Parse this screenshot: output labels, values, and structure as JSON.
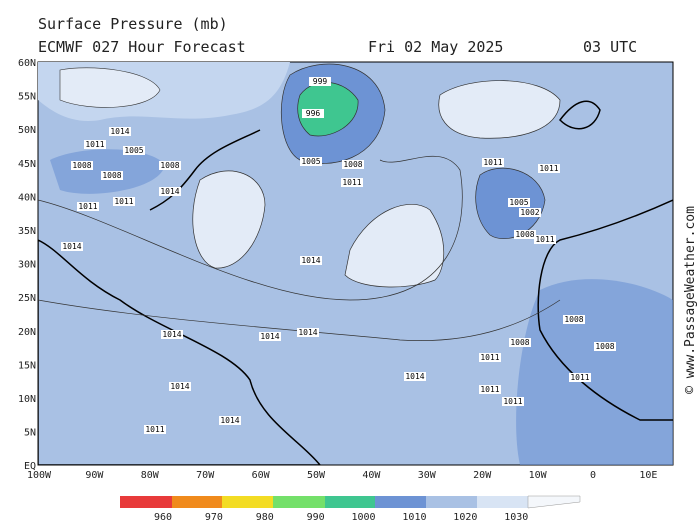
{
  "header": {
    "title": "Surface Pressure (mb)",
    "model": "ECMWF 027 Hour Forecast",
    "date": "Fri 02 May 2025",
    "time": "03 UTC"
  },
  "lat_labels": [
    "60N",
    "55N",
    "50N",
    "45N",
    "40N",
    "35N",
    "30N",
    "25N",
    "20N",
    "15N",
    "10N",
    "5N",
    "EQ"
  ],
  "lon_labels": [
    "100W",
    "90W",
    "80W",
    "70W",
    "60W",
    "50W",
    "40W",
    "30W",
    "20W",
    "10W",
    "0",
    "10E"
  ],
  "colorbar": {
    "labels": [
      "960",
      "970",
      "980",
      "990",
      "1000",
      "1010",
      "1020",
      "1030"
    ]
  },
  "isobar_labels": [
    "1014",
    "1011",
    "1005",
    "1008",
    "1008",
    "1014",
    "1011",
    "1011",
    "1008",
    "996",
    "999",
    "1005",
    "1008",
    "1011",
    "1011",
    "1011",
    "1005",
    "1002",
    "1008",
    "1011",
    "1014",
    "1014",
    "1014",
    "1014",
    "1014",
    "1014",
    "1011",
    "1008",
    "1008",
    "1008",
    "1011",
    "1011",
    "1011",
    "1014",
    "1014",
    "1011"
  ],
  "watermark": "© www.PassageWeather.com"
}
